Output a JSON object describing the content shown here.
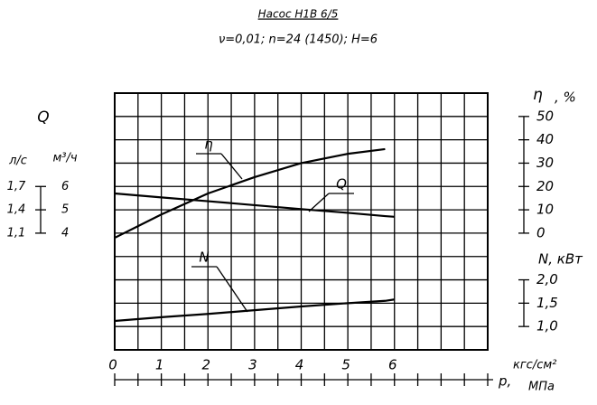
{
  "chart_data": {
    "type": "line",
    "title": "Насос Н1В 6/5",
    "subtitle": "ν=0,01; n=24 (1450); H=6",
    "x_label": "p,",
    "x_unit": "кгс/см²",
    "x_unit2": "МПа",
    "x": [
      0,
      1,
      2,
      3,
      4,
      5,
      5.8,
      6
    ],
    "xlim": [
      0,
      8
    ],
    "xticks": [
      0,
      1,
      2,
      3,
      4,
      5,
      6
    ],
    "xminorticks": [
      0.5,
      1.5,
      2.5,
      3.5,
      4.5,
      5.5,
      6.5,
      7,
      7.5,
      8
    ],
    "y_label": "Q",
    "y_unit": "м³/ч",
    "y_unit_alt": "л/с",
    "ylim": [
      -1,
      10
    ],
    "yticks": [
      4,
      5,
      6
    ],
    "yticks_alt": [
      {
        "value": 4,
        "label": "1,1"
      },
      {
        "value": 5,
        "label": "1,4"
      },
      {
        "value": 6,
        "label": "1,7"
      }
    ],
    "y2_label": "η",
    "y2_unit": ", %",
    "y2lim": [
      -50,
      60
    ],
    "y2ticks": [
      0,
      10,
      20,
      30,
      40,
      50
    ],
    "y3_label": "N, кВт",
    "y3lim": [
      0.5,
      6
    ],
    "y3ticks": [
      {
        "value": 1,
        "label": "1,0"
      },
      {
        "value": 1.5,
        "label": "1,5"
      },
      {
        "value": 2,
        "label": "2,0"
      }
    ],
    "grid": true,
    "series": [
      {
        "name": "η",
        "axis": "y2",
        "color": "#000000",
        "values": [
          -2,
          8,
          17,
          24,
          30,
          34,
          36,
          null
        ]
      },
      {
        "name": "Q",
        "axis": "y",
        "color": "#000000",
        "values": [
          5.7,
          5.53,
          5.37,
          5.2,
          5.03,
          4.87,
          4.73,
          4.7
        ]
      },
      {
        "name": "N",
        "axis": "y3",
        "color": "#000000",
        "values": [
          1.12,
          1.2,
          1.27,
          1.35,
          1.43,
          1.5,
          1.55,
          1.58
        ]
      }
    ]
  }
}
